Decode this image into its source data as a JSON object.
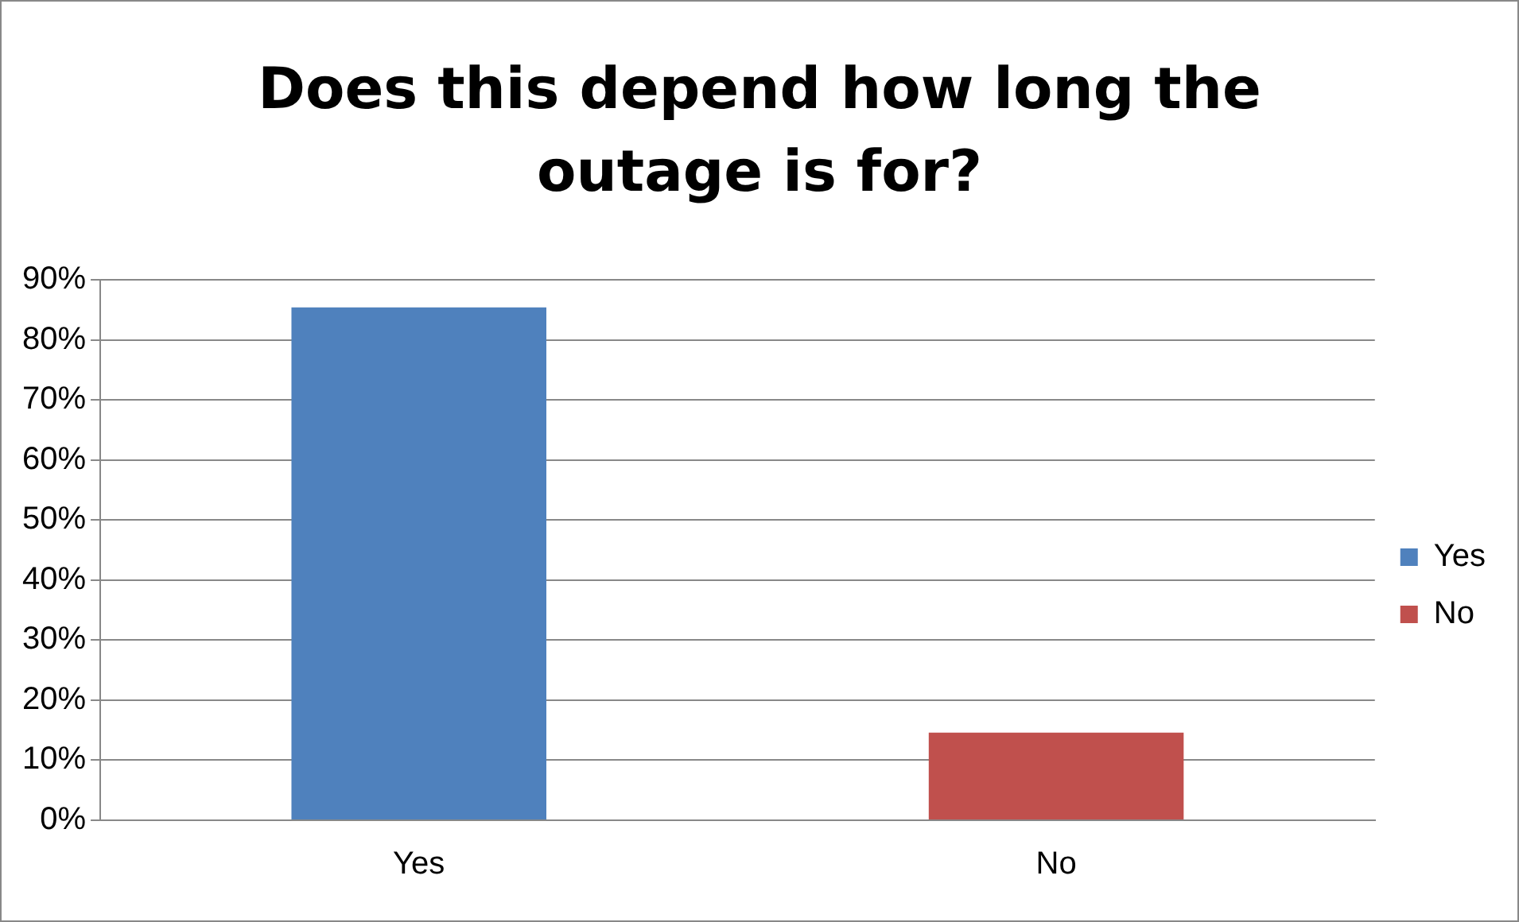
{
  "chart_data": {
    "type": "bar",
    "title": "Does this depend how long the outage is for?",
    "categories": [
      "Yes",
      "No"
    ],
    "series": [
      {
        "name": "Yes",
        "color": "#4f81bd",
        "values": [
          85.4,
          null
        ]
      },
      {
        "name": "No",
        "color": "#c0504d",
        "values": [
          null,
          14.6
        ]
      }
    ],
    "ylim": [
      0,
      90
    ],
    "yticks": [
      {
        "value": 0,
        "label": "0%"
      },
      {
        "value": 10,
        "label": "10%"
      },
      {
        "value": 20,
        "label": "20%"
      },
      {
        "value": 30,
        "label": "30%"
      },
      {
        "value": 40,
        "label": "40%"
      },
      {
        "value": 50,
        "label": "50%"
      },
      {
        "value": 60,
        "label": "60%"
      },
      {
        "value": 70,
        "label": "70%"
      },
      {
        "value": 80,
        "label": "80%"
      },
      {
        "value": 90,
        "label": "90%"
      }
    ],
    "grid": "y",
    "legend": "right"
  }
}
